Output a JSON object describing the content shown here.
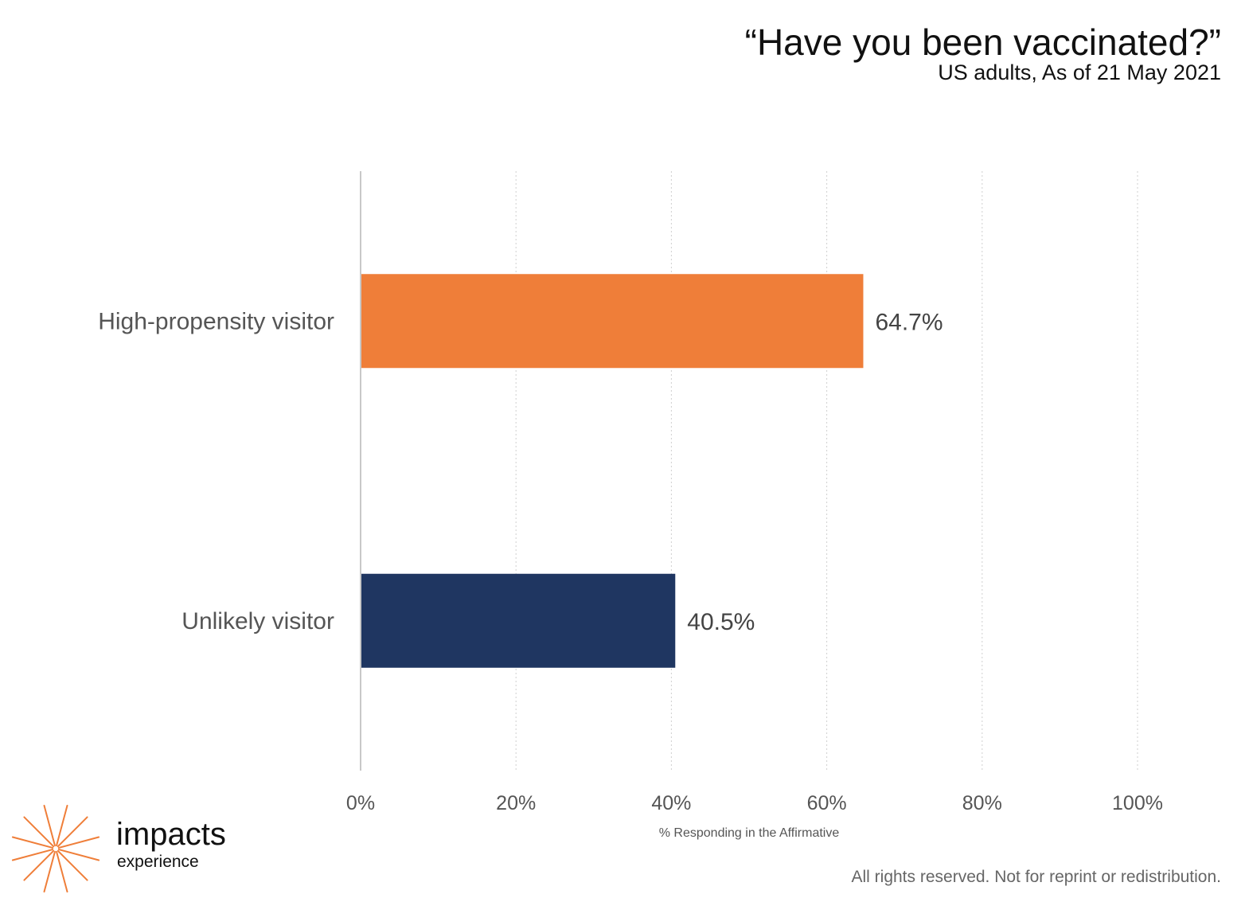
{
  "chart_data": {
    "type": "bar",
    "orientation": "horizontal",
    "title": "“Have you been vaccinated?”",
    "subtitle": "US adults, As of 21 May 2021",
    "categories": [
      "High-propensity visitor",
      "Unlikely visitor"
    ],
    "values": [
      64.7,
      40.5
    ],
    "value_labels": [
      "64.7%",
      "40.5%"
    ],
    "colors": [
      "#EF7E39",
      "#1F3661"
    ],
    "xlabel": "% Responding in the Affirmative",
    "ylabel": "",
    "xlim": [
      0,
      100
    ],
    "x_ticks": [
      0,
      20,
      40,
      60,
      80,
      100
    ],
    "x_tick_labels": [
      "0%",
      "20%",
      "40%",
      "60%",
      "80%",
      "100%"
    ],
    "grid": "vertical dotted",
    "legend": "none"
  },
  "footer": {
    "rights": "All rights reserved. Not for reprint or redistribution."
  },
  "brand": {
    "name": "impacts",
    "sub": "experience",
    "logo_icon": "starburst-icon",
    "logo_color": "#EF7E39"
  }
}
